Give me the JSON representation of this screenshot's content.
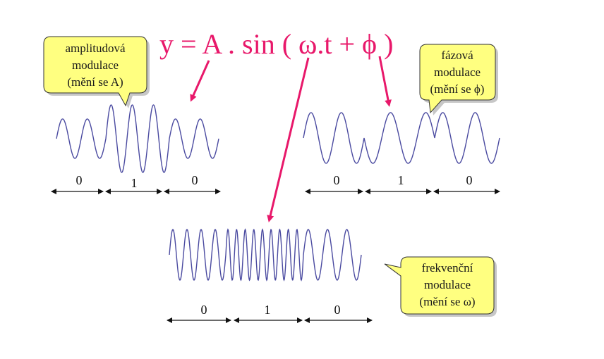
{
  "formula": "y = A . sin ( ω.t + ϕ )",
  "callouts": {
    "amplitude": {
      "lines": [
        "amplitudová",
        "modulace",
        "(mění se A)"
      ]
    },
    "phase": {
      "lines": [
        "fázová",
        "modulace",
        "(mění se ϕ)"
      ]
    },
    "frequency": {
      "lines": [
        "frekvenční",
        "modulace",
        "(mění se ω)"
      ]
    }
  },
  "diagrams": {
    "amplitude": {
      "bits": [
        "0",
        "1",
        "0"
      ]
    },
    "phase": {
      "bits": [
        "0",
        "1",
        "0"
      ]
    },
    "frequency": {
      "bits": [
        "0",
        "1",
        "0"
      ]
    }
  },
  "colors": {
    "formula": "#e8186a",
    "pointer_arrows": "#e8186a",
    "wave": "#4a4aa0",
    "callout_fill": "#ffff80"
  }
}
